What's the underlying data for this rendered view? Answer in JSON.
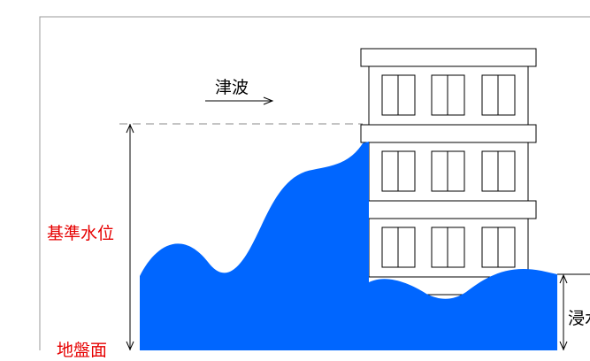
{
  "labels": {
    "tsunami": "津波",
    "reference_water_level": "基準水位",
    "ground_surface": "地盤面",
    "inundation": "浸水"
  },
  "colors": {
    "water": "#0066ff",
    "red_label": "#e60000",
    "line": "#000000",
    "dashed_line": "#888888",
    "frame": "#999999"
  },
  "building": {
    "floors_visible": 3,
    "windows_per_floor": 3
  }
}
